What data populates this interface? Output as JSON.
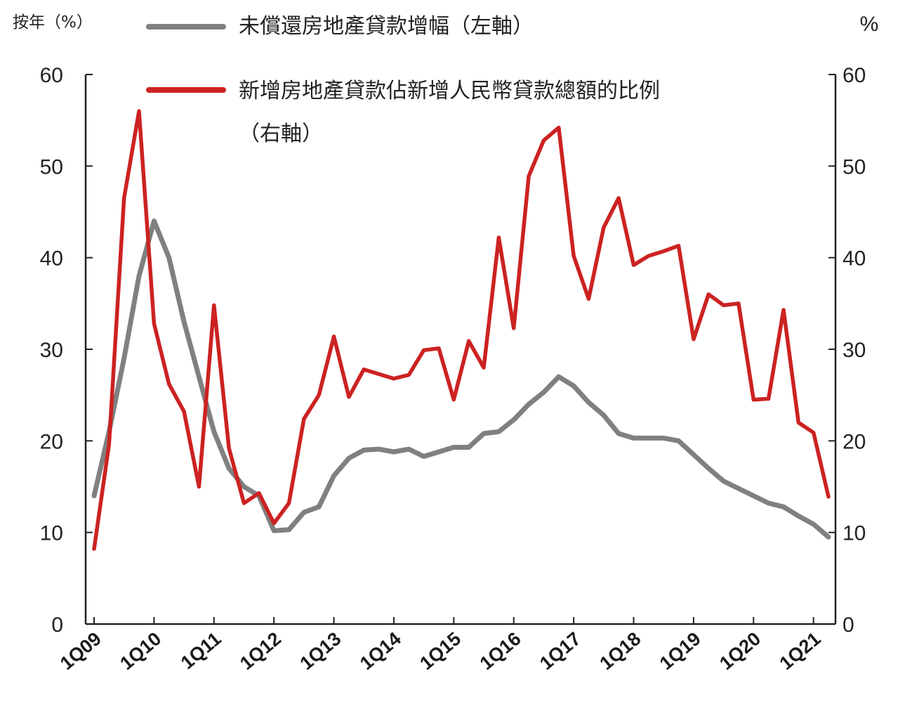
{
  "chart_data": {
    "type": "line",
    "left_axis_unit": "按年（%）",
    "right_axis_unit": "%",
    "y_left": {
      "min": 0,
      "max": 60,
      "ticks": [
        0,
        10,
        20,
        30,
        40,
        50,
        60
      ]
    },
    "y_right": {
      "min": 0,
      "max": 60,
      "ticks": [
        0,
        10,
        20,
        30,
        40,
        50,
        60
      ]
    },
    "x_tick_labels": [
      "1Q09",
      "1Q10",
      "1Q11",
      "1Q12",
      "1Q13",
      "1Q14",
      "1Q15",
      "1Q16",
      "1Q17",
      "1Q18",
      "1Q19",
      "1Q20",
      "1Q21"
    ],
    "x_start_quarter_index": 0,
    "x_end_quarter_index": 49,
    "grid": false,
    "legend_position": "top",
    "series": [
      {
        "name": "未償還房地產貸款增幅（左軸）",
        "axis": "left",
        "color": "#808080",
        "values": [
          14,
          21,
          29,
          38,
          44,
          40,
          33,
          27,
          21,
          17,
          15,
          14,
          10.2,
          10.3,
          12.2,
          12.8,
          16.2,
          18.1,
          19.0,
          19.1,
          18.8,
          19.1,
          18.3,
          18.8,
          19.3,
          19.3,
          20.8,
          21.0,
          22.3,
          24.0,
          25.3,
          27.0,
          26.0,
          24.2,
          22.8,
          20.8,
          20.3,
          20.3,
          20.3,
          20.0,
          18.5,
          17.0,
          15.6,
          14.8,
          14.0,
          13.2,
          12.8,
          11.8,
          10.9,
          9.5
        ]
      },
      {
        "name": "新增房地產貸款佔新增人民幣貸款總額的比例（右軸）",
        "axis": "right",
        "color": "#cc2222",
        "values": [
          8.2,
          19.6,
          46.5,
          56.0,
          32.8,
          26.2,
          23.2,
          15.0,
          34.8,
          19.2,
          13.2,
          14.3,
          11.0,
          13.2,
          22.4,
          25.0,
          31.4,
          24.8,
          27.8,
          27.3,
          26.8,
          27.2,
          29.9,
          30.1,
          24.5,
          30.9,
          28.0,
          42.2,
          32.3,
          48.9,
          52.8,
          54.2,
          40.2,
          35.5,
          43.3,
          46.5,
          39.2,
          40.2,
          40.7,
          41.3,
          31.1,
          36.0,
          34.8,
          35.0,
          24.5,
          24.6,
          34.3,
          22.0,
          20.9,
          13.9
        ]
      }
    ]
  }
}
